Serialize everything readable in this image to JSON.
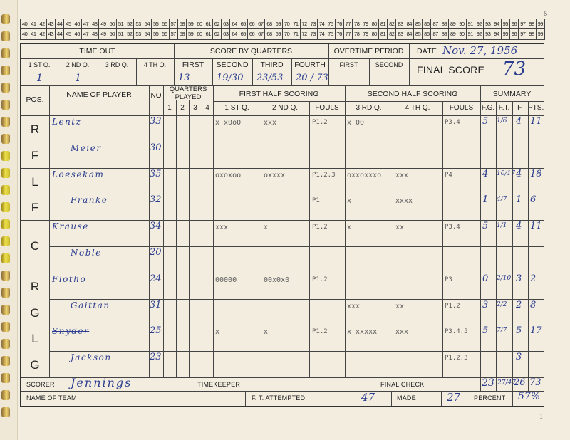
{
  "page_number_top": "5",
  "page_number_bottom": "1",
  "number_strip": [
    "40",
    "41",
    "42",
    "43",
    "44",
    "45",
    "46",
    "47",
    "48",
    "49",
    "50",
    "51",
    "52",
    "53",
    "54",
    "55",
    "56",
    "57",
    "58",
    "59",
    "60",
    "61",
    "62",
    "63",
    "64",
    "65",
    "66",
    "67",
    "68",
    "69",
    "70",
    "71",
    "72",
    "73",
    "74",
    "75",
    "76",
    "77",
    "78",
    "79",
    "80",
    "81",
    "82",
    "83",
    "84",
    "85",
    "86",
    "87",
    "88",
    "89",
    "90",
    "91",
    "92",
    "93",
    "94",
    "95",
    "96",
    "97",
    "98",
    "99"
  ],
  "header": {
    "time_out": "TIME OUT",
    "score_by_quarters": "SCORE BY QUARTERS",
    "overtime_period": "OVERTIME PERIOD",
    "date_label": "DATE",
    "date_value": "Nov. 27, 1956",
    "final_score_label": "FINAL SCORE",
    "final_score_value": "73",
    "to_cols": [
      "1 ST Q.",
      "2 ND Q.",
      "3 RD Q.",
      "4 TH Q."
    ],
    "to_values": [
      "1",
      "1",
      "",
      ""
    ],
    "sq_cols": [
      "FIRST",
      "SECOND",
      "THIRD",
      "FOURTH"
    ],
    "sq_values": [
      "13",
      "19/30",
      "23/53",
      "20 / 73"
    ],
    "ot_cols": [
      "FIRST",
      "SECOND"
    ]
  },
  "table_head": {
    "pos": "POS.",
    "name": "NAME OF PLAYER",
    "no": "NO",
    "quarters_played": "QUARTERS PLAYED",
    "qp": [
      "1",
      "2",
      "3",
      "4"
    ],
    "first_half": "FIRST HALF SCORING",
    "second_half": "SECOND HALF SCORING",
    "summary": "SUMMARY",
    "fh_cols": [
      "1 ST Q.",
      "2 ND Q.",
      "FOULS"
    ],
    "sh_cols": [
      "3 RD Q.",
      "4 TH Q.",
      "FOULS"
    ],
    "sum_cols": [
      "F.G.",
      "F.T.",
      "F.",
      "PTS."
    ]
  },
  "positions": [
    "RF",
    "LF",
    "C",
    "RG",
    "LG"
  ],
  "rows": [
    {
      "name": "Lentz",
      "no": "33",
      "q1": "x x0o0",
      "q2": "xxx",
      "f1": "P1.2",
      "q3": "x 00",
      "q4": "",
      "f2": "P3.4",
      "fg": "5",
      "ft": "1/6",
      "f": "4",
      "pts": "11"
    },
    {
      "name": "Meier",
      "no": "30",
      "q1": "",
      "q2": "",
      "f1": "",
      "q3": "",
      "q4": "",
      "f2": "",
      "fg": "",
      "ft": "",
      "f": "",
      "pts": ""
    },
    {
      "name": "Loesekam",
      "no": "35",
      "q1": "oxoxoo",
      "q2": "oxxxx",
      "f1": "P1.2.3",
      "q3": "oxxoxxxo",
      "q4": "xxx",
      "f2": "P4",
      "fg": "4",
      "ft": "10/17",
      "f": "4",
      "pts": "18"
    },
    {
      "name": "Franke",
      "no": "32",
      "q1": "",
      "q2": "",
      "f1": "P1",
      "q3": "x",
      "q4": "xxxx",
      "f2": "",
      "fg": "1",
      "ft": "4/7",
      "f": "1",
      "pts": "6"
    },
    {
      "name": "Krause",
      "no": "34",
      "q1": "xxx",
      "q2": "x",
      "f1": "P1.2",
      "q3": "x",
      "q4": "xx",
      "f2": "P3.4",
      "fg": "5",
      "ft": "1/1",
      "f": "4",
      "pts": "11"
    },
    {
      "name": "Noble",
      "no": "20",
      "q1": "",
      "q2": "",
      "f1": "",
      "q3": "",
      "q4": "",
      "f2": "",
      "fg": "",
      "ft": "",
      "f": "",
      "pts": ""
    },
    {
      "name": "Flotho",
      "no": "24",
      "q1": "00000",
      "q2": "00x0x0",
      "f1": "P1.2",
      "q3": "",
      "q4": "",
      "f2": "P3",
      "fg": "0",
      "ft": "2/10",
      "f": "3",
      "pts": "2"
    },
    {
      "name": "Gaittan",
      "no": "31",
      "q1": "",
      "q2": "",
      "f1": "",
      "q3": "xxx",
      "q4": "xx",
      "f2": "P1.2",
      "fg": "3",
      "ft": "2/2",
      "f": "2",
      "pts": "8"
    },
    {
      "name": "Snyder",
      "no": "25",
      "q1": "x",
      "q2": "x",
      "f1": "P1.2",
      "q3": "x xxxxx",
      "q4": "xxx",
      "f2": "P3.4.5",
      "fg": "5",
      "ft": "7/7",
      "f": "5",
      "pts": "17"
    },
    {
      "name": "Jackson",
      "no": "23",
      "q1": "",
      "q2": "",
      "f1": "",
      "q3": "",
      "q4": "",
      "f2": "P1.2.3",
      "fg": "",
      "ft": "",
      "f": "3",
      "pts": ""
    }
  ],
  "footer": {
    "scorer_label": "SCORER",
    "scorer_value": "Jennings",
    "timekeeper_label": "TIMEKEEPER",
    "final_check_label": "FINAL CHECK",
    "final_check": [
      "23",
      "27/47",
      "26",
      "73"
    ],
    "name_of_team_label": "NAME OF TEAM",
    "ft_attempted_label": "F. T. ATTEMPTED",
    "ft_attempted_value": "47",
    "made_label": "MADE",
    "made_value": "27",
    "percent_label": "PERCENT",
    "percent_value": "57%"
  },
  "colors": {
    "ink": "#2b3d8f",
    "pencil": "#5a5a5a",
    "paper": "#f3ede0",
    "rule": "#444444"
  }
}
